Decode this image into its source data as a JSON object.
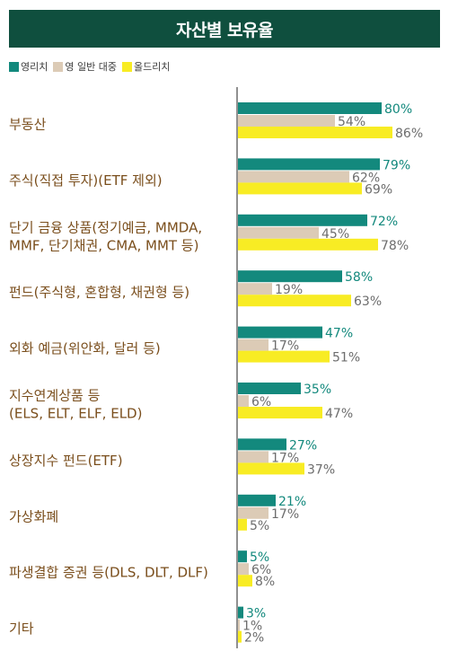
{
  "title": "자산별 보유율",
  "colors": {
    "header": "#0f4f3e",
    "series1": "#13897d",
    "series2": "#dccbb6",
    "series3": "#f8ec24",
    "label1": "#13897d",
    "label2": "#6d6d6d",
    "label3": "#6d6d6d",
    "category": "#7a4e1c"
  },
  "chart_data": {
    "type": "bar",
    "orientation": "horizontal",
    "title": "자산별 보유율",
    "legend_placement": "top-left",
    "categories": [
      [
        "부동산"
      ],
      [
        "주식(직접 투자)(ETF 제외)"
      ],
      [
        "단기 금융 상품(정기예금, MMDA,",
        "MMF, 단기채권, CMA, MMT 등)"
      ],
      [
        "펀드(주식형, 혼합형, 채권형 등)"
      ],
      [
        "외화 예금(위안화, 달러 등)"
      ],
      [
        "지수연계상품 등",
        "(ELS, ELT, ELF, ELD)"
      ],
      [
        "상장지수 펀드(ETF)"
      ],
      [
        "가상화폐"
      ],
      [
        "파생결합 증권 등(DLS, DLT, DLF)"
      ],
      [
        "기타"
      ]
    ],
    "series": [
      {
        "name": "영리치",
        "values": [
          80,
          79,
          72,
          58,
          47,
          35,
          27,
          21,
          5,
          3
        ]
      },
      {
        "name": "영 일반 대중",
        "values": [
          54,
          62,
          45,
          19,
          17,
          6,
          17,
          17,
          6,
          1
        ]
      },
      {
        "name": "올드리치",
        "values": [
          86,
          69,
          78,
          63,
          51,
          47,
          37,
          5,
          8,
          2
        ]
      }
    ],
    "value_suffix": "%",
    "xlim": [
      0,
      100
    ],
    "grid": false
  }
}
